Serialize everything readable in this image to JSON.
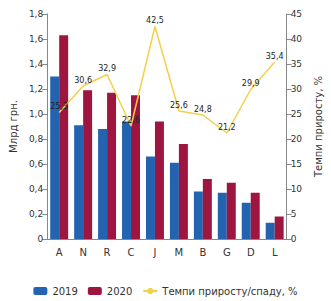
{
  "chart_data": {
    "type": "bar",
    "categories": [
      "A",
      "N",
      "R",
      "C",
      "J",
      "M",
      "B",
      "G",
      "D",
      "L"
    ],
    "y_label": "Млрд грн.",
    "y2_label": "Темпи приросту, %",
    "ylim": [
      0,
      1.8
    ],
    "yticks": [
      0,
      {
        "value": 0.2,
        "label": "0,2"
      },
      {
        "value": 0.4,
        "label": "0,4"
      },
      {
        "value": 0.6,
        "label": "0,6"
      },
      {
        "value": 0.8,
        "label": "0,8"
      },
      {
        "value": 1.0,
        "label": "1,0"
      },
      {
        "value": 1.2,
        "label": "1,2"
      },
      {
        "value": 1.4,
        "label": "1,4"
      },
      {
        "value": 1.6,
        "label": "1,6"
      },
      {
        "value": 1.8,
        "label": "1,8"
      }
    ],
    "y2lim": [
      0,
      45
    ],
    "y2ticks": [
      0,
      5,
      10,
      15,
      20,
      25,
      30,
      35,
      40,
      45
    ],
    "legend": "bottom",
    "data_labels": true,
    "grid": false,
    "series": [
      {
        "name": "2019",
        "type": "bar",
        "color": "#2463b0",
        "values": [
          1.3,
          0.91,
          0.88,
          0.94,
          0.66,
          0.61,
          0.38,
          0.37,
          0.29,
          0.13
        ]
      },
      {
        "name": "2020",
        "type": "bar",
        "color": "#9e1640",
        "values": [
          1.63,
          1.19,
          1.17,
          1.15,
          0.94,
          0.76,
          0.48,
          0.45,
          0.37,
          0.18
        ]
      },
      {
        "name": "Темпи приросту/спаду, %",
        "type": "line",
        "axis": "y2",
        "color": "#f2d04b",
        "values": [
          25.3,
          30.6,
          32.9,
          22.6,
          42.5,
          25.6,
          24.8,
          21.2,
          29.9,
          35.4
        ],
        "value_labels": [
          "25,3",
          "30,6",
          "32,9",
          "22,6",
          "42,5",
          "25,6",
          "24,8",
          "21,2",
          "29,9",
          "35,4"
        ]
      }
    ]
  }
}
